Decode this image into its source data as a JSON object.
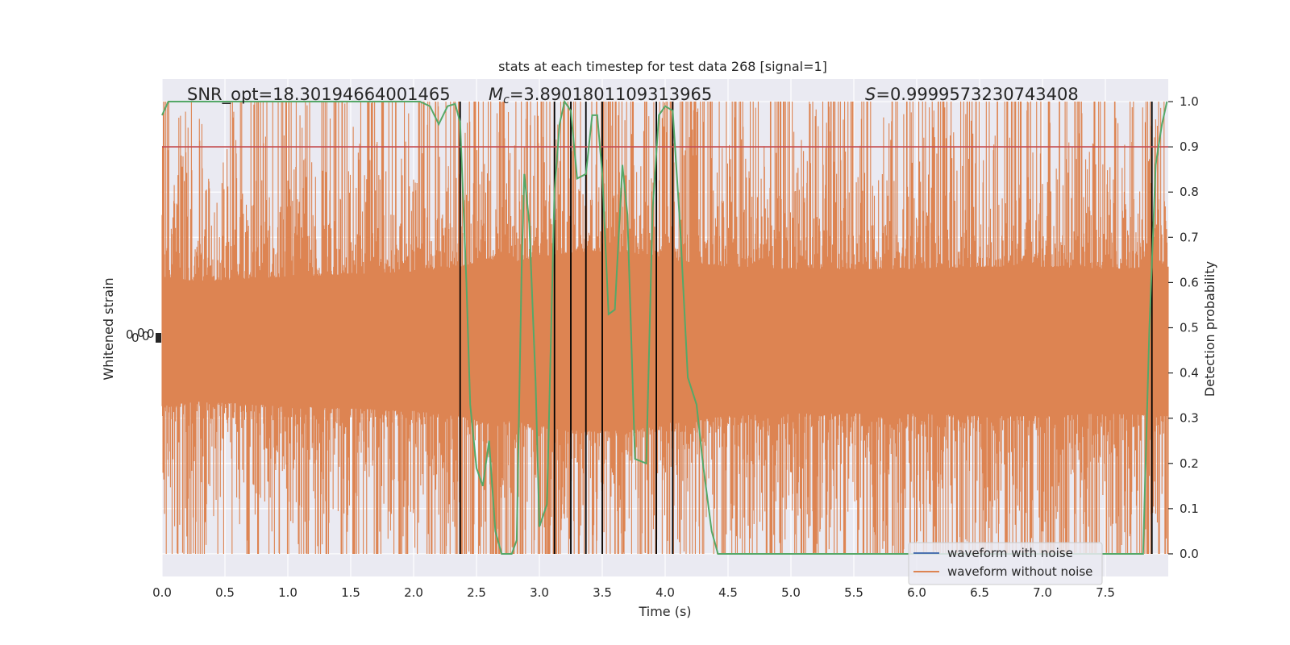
{
  "chart_data": {
    "type": "line",
    "title": "stats at each timestep for test data 268 [signal=1]",
    "xlabel": "Time (s)",
    "ylabel_left": "Whitened strain",
    "ylabel_right": "Detection probability",
    "xlim": [
      0,
      8
    ],
    "ylim_right": [
      -0.05,
      1.05
    ],
    "x_ticks": [
      "0.0",
      "0.5",
      "1.0",
      "1.5",
      "2.0",
      "2.5",
      "3.0",
      "3.5",
      "4.0",
      "4.5",
      "5.0",
      "5.5",
      "6.0",
      "6.5",
      "7.0",
      "7.5"
    ],
    "y_ticks_right": [
      "0.0",
      "0.1",
      "0.2",
      "0.3",
      "0.4",
      "0.5",
      "0.6",
      "0.7",
      "0.8",
      "0.9",
      "1.0"
    ],
    "grid": true,
    "legend_position": "lower-right",
    "annotations": {
      "snr": "SNR_opt=18.30194664001465",
      "mc_symbol": "M",
      "mc_sub": "c",
      "mc_value": "=3.8901801109313965",
      "s_symbol": "S",
      "s_value": "=0.9999573230743408"
    },
    "threshold": 0.9,
    "detection_markers_x": [
      2.37,
      3.12,
      3.25,
      3.37,
      3.5,
      3.93,
      4.06,
      7.87
    ],
    "series": [
      {
        "name": "waveform with noise",
        "color": "#4c72b0"
      },
      {
        "name": "waveform without noise",
        "color": "#dd8452",
        "center": 0.47,
        "envelope": [
          [
            0.0,
            0.26
          ],
          [
            0.3,
            0.24
          ],
          [
            0.6,
            0.25
          ],
          [
            1.0,
            0.26
          ],
          [
            1.5,
            0.27
          ],
          [
            2.0,
            0.28
          ],
          [
            2.37,
            0.3
          ],
          [
            2.6,
            0.33
          ],
          [
            2.8,
            0.32
          ],
          [
            3.0,
            0.34
          ],
          [
            3.3,
            0.36
          ],
          [
            3.7,
            0.36
          ],
          [
            4.0,
            0.33
          ],
          [
            4.5,
            0.3
          ],
          [
            5.0,
            0.29
          ],
          [
            5.5,
            0.29
          ],
          [
            6.0,
            0.29
          ],
          [
            6.5,
            0.3
          ],
          [
            7.0,
            0.3
          ],
          [
            7.5,
            0.29
          ],
          [
            8.0,
            0.3
          ]
        ],
        "min_value": 0.0,
        "max_value": 1.0
      },
      {
        "name": "detection probability",
        "color": "#55a868",
        "points": [
          [
            0.0,
            0.97
          ],
          [
            0.05,
            1.0
          ],
          [
            0.5,
            1.0
          ],
          [
            1.0,
            1.0
          ],
          [
            1.5,
            1.0
          ],
          [
            2.05,
            1.0
          ],
          [
            2.13,
            0.99
          ],
          [
            2.2,
            0.95
          ],
          [
            2.27,
            0.99
          ],
          [
            2.33,
            0.995
          ],
          [
            2.37,
            0.955
          ],
          [
            2.42,
            0.6
          ],
          [
            2.45,
            0.33
          ],
          [
            2.5,
            0.19
          ],
          [
            2.55,
            0.15
          ],
          [
            2.6,
            0.25
          ],
          [
            2.65,
            0.05
          ],
          [
            2.7,
            0.0
          ],
          [
            2.78,
            0.0
          ],
          [
            2.82,
            0.03
          ],
          [
            2.86,
            0.65
          ],
          [
            2.88,
            0.84
          ],
          [
            2.92,
            0.73
          ],
          [
            2.97,
            0.38
          ],
          [
            3.0,
            0.06
          ],
          [
            3.06,
            0.11
          ],
          [
            3.12,
            0.8
          ],
          [
            3.16,
            0.95
          ],
          [
            3.2,
            1.0
          ],
          [
            3.25,
            0.98
          ],
          [
            3.3,
            0.83
          ],
          [
            3.37,
            0.84
          ],
          [
            3.42,
            0.97
          ],
          [
            3.46,
            0.97
          ],
          [
            3.5,
            0.84
          ],
          [
            3.55,
            0.53
          ],
          [
            3.6,
            0.54
          ],
          [
            3.66,
            0.86
          ],
          [
            3.7,
            0.75
          ],
          [
            3.76,
            0.21
          ],
          [
            3.85,
            0.2
          ],
          [
            3.9,
            0.76
          ],
          [
            3.95,
            0.97
          ],
          [
            4.0,
            0.99
          ],
          [
            4.06,
            0.98
          ],
          [
            4.12,
            0.72
          ],
          [
            4.18,
            0.39
          ],
          [
            4.25,
            0.33
          ],
          [
            4.3,
            0.2
          ],
          [
            4.37,
            0.05
          ],
          [
            4.42,
            0.0
          ],
          [
            5.0,
            0.0
          ],
          [
            5.6,
            0.0
          ],
          [
            6.0,
            0.0
          ],
          [
            7.0,
            0.0
          ],
          [
            7.8,
            0.0
          ],
          [
            7.85,
            0.5
          ],
          [
            7.9,
            0.86
          ],
          [
            7.95,
            0.95
          ],
          [
            7.99,
            1.0
          ]
        ]
      }
    ],
    "left_axis_tick_glyphs": [
      "0",
      "0",
      "0",
      "0",
      "0"
    ]
  }
}
